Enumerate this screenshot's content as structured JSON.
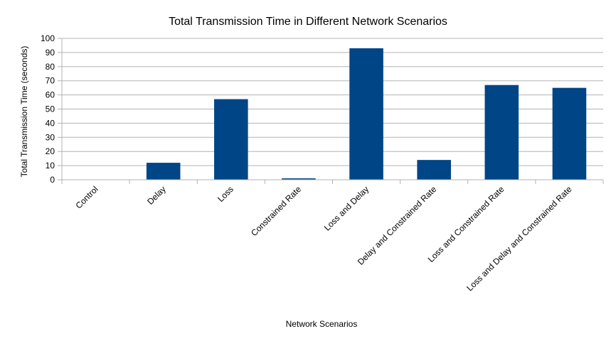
{
  "chart_data": {
    "type": "bar",
    "title": "Total Transmission Time in Different Network Scenarios",
    "xlabel": "Network Scenarios",
    "ylabel": "Total Transmission Time (seconds)",
    "categories": [
      "Control",
      "Delay",
      "Loss",
      "Constrained Rate",
      "Loss and Delay",
      "Delay and Constrained Rate",
      "Loss and Constrained Rate",
      "Loss and Delay and Constrained Rate"
    ],
    "values": [
      0,
      12,
      57,
      1,
      93,
      14,
      67,
      65
    ],
    "ylim": [
      0,
      100
    ],
    "yticks": [
      0,
      10,
      20,
      30,
      40,
      50,
      60,
      70,
      80,
      90,
      100
    ],
    "grid": true,
    "legend": "none",
    "colors": {
      "bar": "#004586",
      "grid": "#b3b3b3",
      "axis": "#b3b3b3"
    }
  }
}
